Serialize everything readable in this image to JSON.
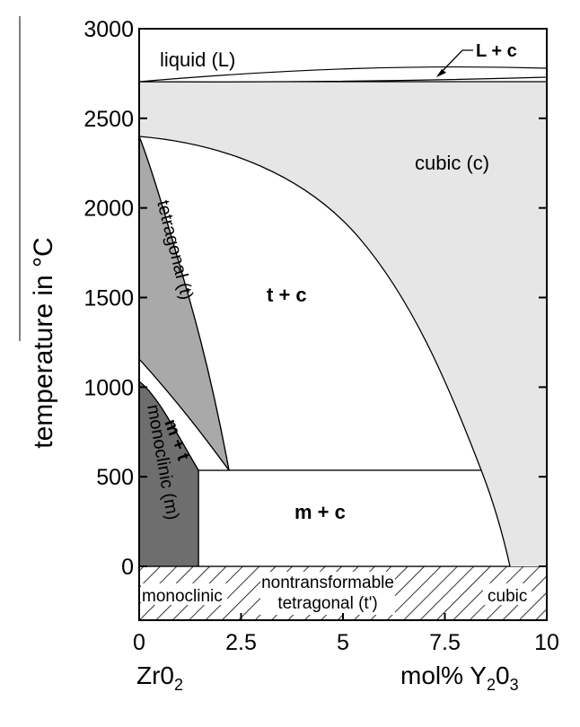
{
  "chart_data": {
    "type": "phase-diagram",
    "title": "",
    "xlabel_left": "Zr0",
    "xlabel_left_sub": "2",
    "xlabel_right": "mol% Y",
    "xlabel_right_sub1": "2",
    "xlabel_right_mid": "0",
    "xlabel_right_sub2": "3",
    "ylabel": "temperature in °C",
    "xlim": [
      0,
      10
    ],
    "ylim": [
      -300,
      3000
    ],
    "x_ticks": [
      "0",
      "2.5",
      "5",
      "7.5",
      "10"
    ],
    "y_ticks": [
      "0",
      "500",
      "1000",
      "1500",
      "2000",
      "2500",
      "3000"
    ],
    "x_tick_values": [
      0,
      2.5,
      5,
      7.5,
      10
    ],
    "y_tick_values": [
      0,
      500,
      1000,
      1500,
      2000,
      2500,
      3000
    ],
    "regions": {
      "liquid": "liquid (L)",
      "liquid_cubic": "L + c",
      "cubic": "cubic (c)",
      "tetragonal": "tetragonal (t)",
      "t_plus_c": "t + c",
      "m_plus_t": "m + t",
      "monoclinic": "monoclinic (m)",
      "m_plus_c": "m + c"
    },
    "bottom_labels": {
      "monoclinic": "monoclinic",
      "nontransformable_1": "nontransformable",
      "nontransformable_2": "tetragonal (t')",
      "cubic": "cubic"
    },
    "colors": {
      "cubic": "#e6e6e6",
      "tetragonal": "#a9a9a9",
      "monoclinic": "#6e6e6e",
      "two_phase": "#ffffff",
      "line": "#000000"
    }
  }
}
